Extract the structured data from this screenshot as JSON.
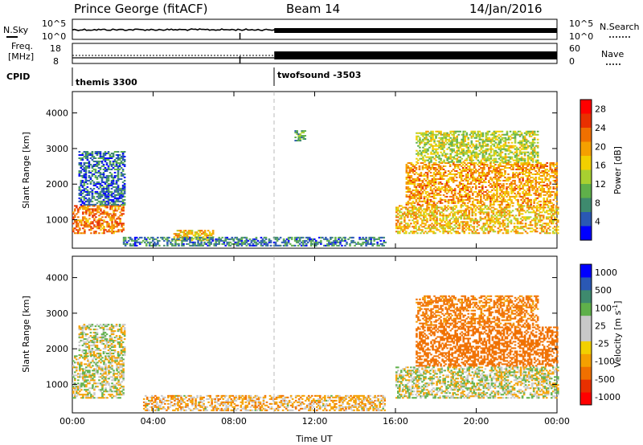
{
  "header": {
    "radar": "Prince George (fitACF)",
    "beam": "Beam 14",
    "date": "14/Jan/2016"
  },
  "strip_labels": {
    "nsky": "N.Sky",
    "nsearch": "N.Search",
    "freq_line1": "Freq.",
    "freq_line2": "[MHz]",
    "nave": "Nave",
    "cpid": "CPID"
  },
  "strip_ticks": {
    "nsky_top": "10^5",
    "nsky_bottom": "10^0",
    "nsearch_top": "10^5",
    "nsearch_bottom": "10^0",
    "freq_top": "18",
    "freq_bottom": "8",
    "nave_top": "60",
    "nave_bottom": "0"
  },
  "cpid": {
    "first": "themis 3300",
    "second": "twofsound -3503"
  },
  "colors": {
    "axis": "#000000",
    "power_scale": [
      "#0000ff",
      "#2a58b4",
      "#3e8a6e",
      "#5fb04a",
      "#a8d030",
      "#f2d000",
      "#f5a000",
      "#f07000",
      "#e83000",
      "#ff0000"
    ],
    "velocity_scale": [
      "#ff0000",
      "#e83000",
      "#f07000",
      "#f5a000",
      "#f2d000",
      "#c8c8c8",
      "#c8c8c8",
      "#5fb04a",
      "#3e8a6e",
      "#2a58b4",
      "#0000ff"
    ]
  },
  "chart_data": [
    {
      "type": "heatmap",
      "quantity": "Power",
      "xlabel": "",
      "ylabel": "Slant Range [km]",
      "x_ticks": [
        "00:00",
        "04:00",
        "08:00",
        "12:00",
        "16:00",
        "20:00",
        "00:00"
      ],
      "y_ticks": [
        1000,
        2000,
        3000,
        4000
      ],
      "ylim": [
        200,
        4600
      ],
      "xlim_hours": [
        0,
        24
      ],
      "colorbar_label": "Power [dB]",
      "colorbar_ticks": [
        4,
        8,
        12,
        16,
        20,
        24,
        28
      ],
      "colorbar_range": [
        0,
        30
      ],
      "regions": [
        {
          "t0": 0.0,
          "t1": 2.5,
          "r0": 600,
          "r1": 1400,
          "level": 22
        },
        {
          "t0": 0.3,
          "t1": 2.6,
          "r0": 1400,
          "r1": 2900,
          "level": 6
        },
        {
          "t0": 5.0,
          "t1": 7.0,
          "r0": 400,
          "r1": 700,
          "level": 18
        },
        {
          "t0": 2.5,
          "t1": 15.5,
          "r0": 250,
          "r1": 500,
          "level": 7
        },
        {
          "t0": 11.0,
          "t1": 11.5,
          "r0": 3200,
          "r1": 3500,
          "level": 10
        },
        {
          "t0": 16.0,
          "t1": 24.0,
          "r0": 600,
          "r1": 1400,
          "level": 18
        },
        {
          "t0": 16.5,
          "t1": 24.0,
          "r0": 1400,
          "r1": 2600,
          "level": 20
        },
        {
          "t0": 17.0,
          "t1": 23.0,
          "r0": 2600,
          "r1": 3500,
          "level": 14
        }
      ]
    },
    {
      "type": "heatmap",
      "quantity": "Velocity",
      "xlabel": "Time UT",
      "ylabel": "Slant Range [km]",
      "x_ticks": [
        "00:00",
        "04:00",
        "08:00",
        "12:00",
        "16:00",
        "20:00",
        "00:00"
      ],
      "y_ticks": [
        1000,
        2000,
        3000,
        4000
      ],
      "ylim": [
        200,
        4600
      ],
      "xlim_hours": [
        0,
        24
      ],
      "colorbar_label": "Velocity [m s^-1]",
      "colorbar_ticks": [
        1000,
        500,
        100,
        25,
        -25,
        -100,
        -500,
        -1000
      ],
      "regions": [
        {
          "t0": 0.0,
          "t1": 2.5,
          "r0": 600,
          "r1": 1800,
          "level": 0
        },
        {
          "t0": 0.3,
          "t1": 2.6,
          "r0": 1800,
          "r1": 2700,
          "level": 0
        },
        {
          "t0": 3.5,
          "t1": 15.5,
          "r0": 250,
          "r1": 700,
          "level": -50
        },
        {
          "t0": 16.0,
          "t1": 24.0,
          "r0": 600,
          "r1": 1500,
          "level": 0
        },
        {
          "t0": 17.0,
          "t1": 24.0,
          "r0": 1500,
          "r1": 2600,
          "level": -200
        },
        {
          "t0": 17.0,
          "t1": 23.0,
          "r0": 2600,
          "r1": 3500,
          "level": -150
        }
      ]
    }
  ]
}
